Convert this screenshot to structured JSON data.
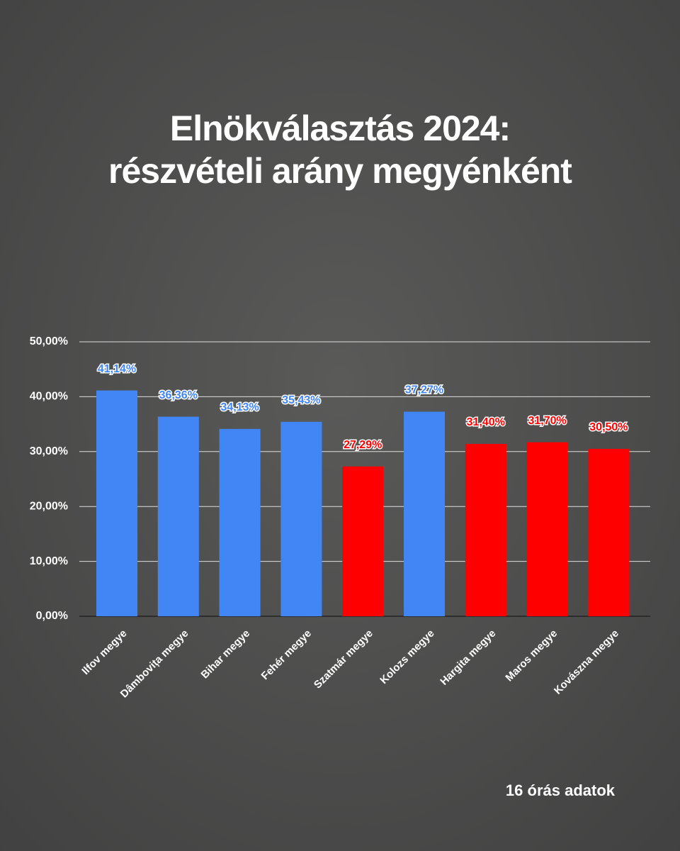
{
  "chart_data": {
    "type": "bar",
    "title": [
      "Elnökválasztás 2024:",
      "részvételi arány megyénként"
    ],
    "note": "16 órás adatok",
    "categories": [
      "Ilfov megye",
      "Dâmbovița megye",
      "Bihar megye",
      "Fehér megye",
      "Szatmár megye",
      "Kolozs megye",
      "Hargita megye",
      "Maros megye",
      "Kovászna megye"
    ],
    "values": [
      41.14,
      36.36,
      34.13,
      35.43,
      27.29,
      37.27,
      31.4,
      31.7,
      30.5
    ],
    "value_labels": [
      "41,14%",
      "36,36%",
      "34,13%",
      "35,43%",
      "27,29%",
      "37,27%",
      "31,40%",
      "31,70%",
      "30,50%"
    ],
    "colors": [
      "#4285f4",
      "#4285f4",
      "#4285f4",
      "#4285f4",
      "#ff0000",
      "#4285f4",
      "#ff0000",
      "#ff0000",
      "#ff0000"
    ],
    "ylim": [
      0,
      50
    ],
    "yticks": [
      {
        "value": 0,
        "label": "0,00%"
      },
      {
        "value": 10,
        "label": "10,00%"
      },
      {
        "value": 20,
        "label": "20,00%"
      },
      {
        "value": 30,
        "label": "30,00%"
      },
      {
        "value": 40,
        "label": "40,00%"
      },
      {
        "value": 50,
        "label": "50,00%"
      }
    ],
    "grid": true
  }
}
